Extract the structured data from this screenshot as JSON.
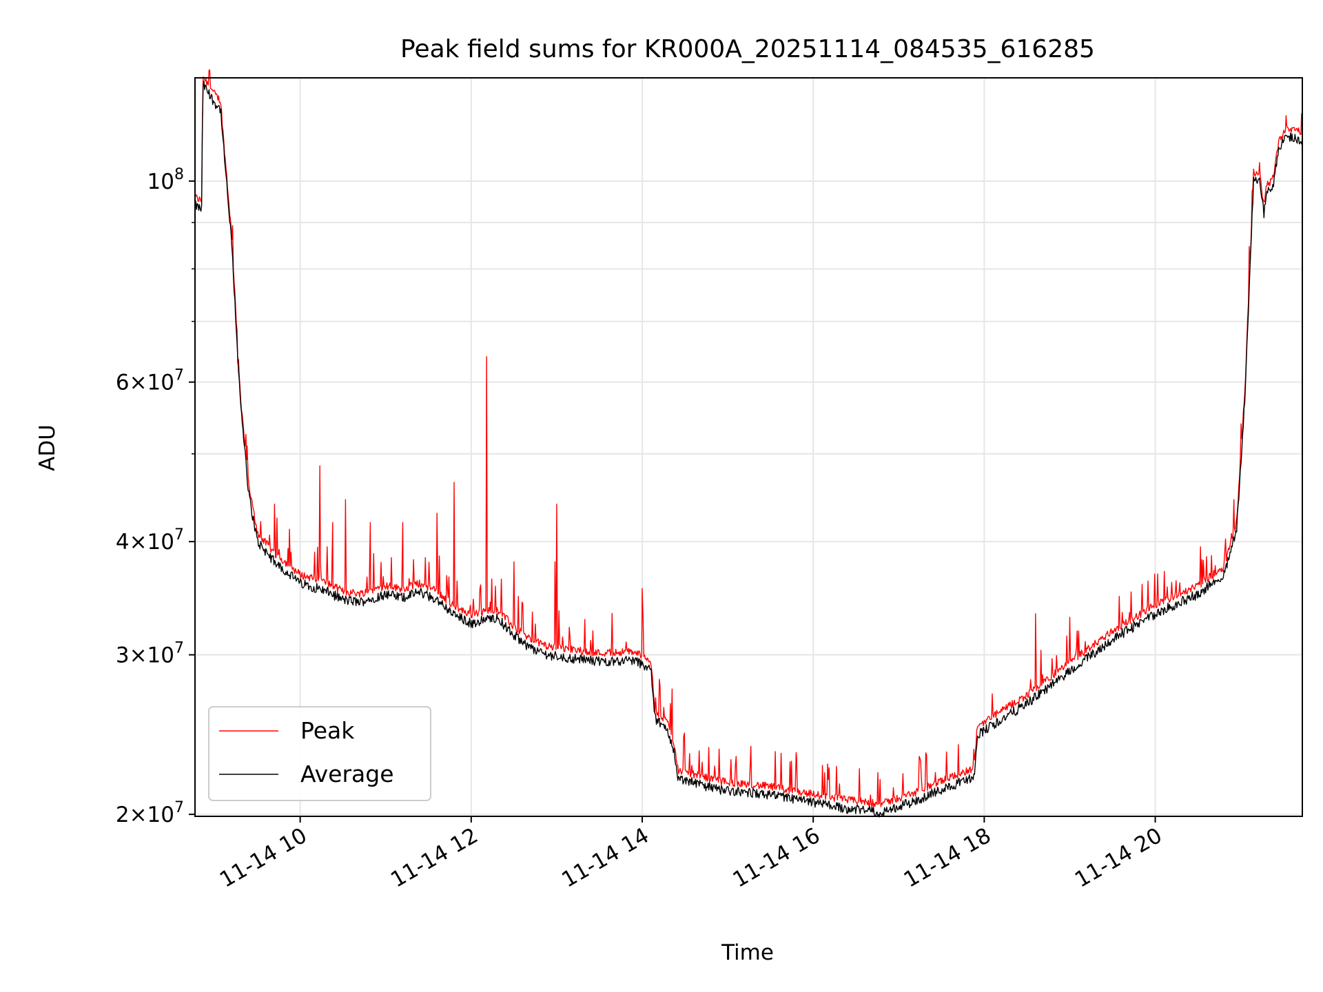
{
  "chart_data": {
    "type": "line",
    "title": "Peak field sums for KR000A_20251114_084535_616285",
    "xlabel": "Time",
    "ylabel": "ADU",
    "yscale": "log",
    "xlim_hours": [
      8.77,
      21.72
    ],
    "ylim": [
      19900000,
      130000000
    ],
    "grid": true,
    "legend_position": "lower-left",
    "x_tick_labels": [
      "11-14 10",
      "11-14 12",
      "11-14 14",
      "11-14 16",
      "11-14 18",
      "11-14 20"
    ],
    "x_tick_hours": [
      10,
      12,
      14,
      16,
      18,
      20
    ],
    "y_major_ticks": [
      {
        "value": 20000000,
        "base": "2",
        "sup": "7"
      },
      {
        "value": 30000000,
        "base": "3",
        "sup": "7"
      },
      {
        "value": 40000000,
        "base": "4",
        "sup": "7"
      },
      {
        "value": 60000000,
        "base": "6",
        "sup": "7"
      },
      {
        "value": 100000000,
        "base": "",
        "sup": "8"
      }
    ],
    "y_minor_ticks": [
      50000000,
      70000000,
      80000000,
      90000000
    ],
    "series": [
      {
        "name": "Peak",
        "color": "#ff0000",
        "spikes": [
          [
            9.27,
            63000000
          ],
          [
            9.38,
            51000000
          ],
          [
            9.7,
            44000000
          ],
          [
            10.23,
            48500000
          ],
          [
            10.38,
            42000000
          ],
          [
            10.53,
            44500000
          ],
          [
            10.82,
            42000000
          ],
          [
            11.2,
            42000000
          ],
          [
            11.6,
            43000000
          ],
          [
            11.8,
            46500000
          ],
          [
            12.18,
            64000000
          ],
          [
            12.5,
            38000000
          ],
          [
            12.98,
            38000000
          ],
          [
            13.0,
            44000000
          ],
          [
            14.0,
            35500000
          ],
          [
            14.35,
            27500000
          ],
          [
            15.8,
            23400000
          ],
          [
            18.6,
            33300000
          ],
          [
            19.0,
            33000000
          ],
          [
            20.6,
            38500000
          ],
          [
            20.92,
            44500000
          ]
        ]
      },
      {
        "name": "Average",
        "color": "#000000",
        "x_hours": [
          8.77,
          8.85,
          8.86,
          9.0,
          9.07,
          9.1,
          9.2,
          9.3,
          9.4,
          9.5,
          9.7,
          10.0,
          10.3,
          10.5,
          10.7,
          11.0,
          11.2,
          11.4,
          11.6,
          11.8,
          12.0,
          12.3,
          12.5,
          12.7,
          12.9,
          13.1,
          13.5,
          13.9,
          14.1,
          14.15,
          14.3,
          14.38,
          14.42,
          14.9,
          15.5,
          16.0,
          16.4,
          16.8,
          17.2,
          17.5,
          17.88,
          17.92,
          18.5,
          19.0,
          19.5,
          20.0,
          20.5,
          20.8,
          20.95,
          21.05,
          21.15,
          21.22,
          21.27,
          21.3,
          21.37,
          21.45,
          21.55,
          21.72
        ],
        "values": [
          94000000,
          93000000,
          128000000,
          122000000,
          120000000,
          110000000,
          85000000,
          57000000,
          45000000,
          40000000,
          38000000,
          36000000,
          35300000,
          34500000,
          34300000,
          35000000,
          34700000,
          35200000,
          34500000,
          33200000,
          32500000,
          33000000,
          31500000,
          30500000,
          30000000,
          29800000,
          29500000,
          29600000,
          29000000,
          25500000,
          24700000,
          23300000,
          21900000,
          21300000,
          21000000,
          20600000,
          20300000,
          20100000,
          20700000,
          21300000,
          22000000,
          24500000,
          26500000,
          28800000,
          31200000,
          33300000,
          35000000,
          36700000,
          41000000,
          58000000,
          100000000,
          100000000,
          92000000,
          97000000,
          98000000,
          109000000,
          112000000,
          111000000
        ]
      }
    ]
  }
}
